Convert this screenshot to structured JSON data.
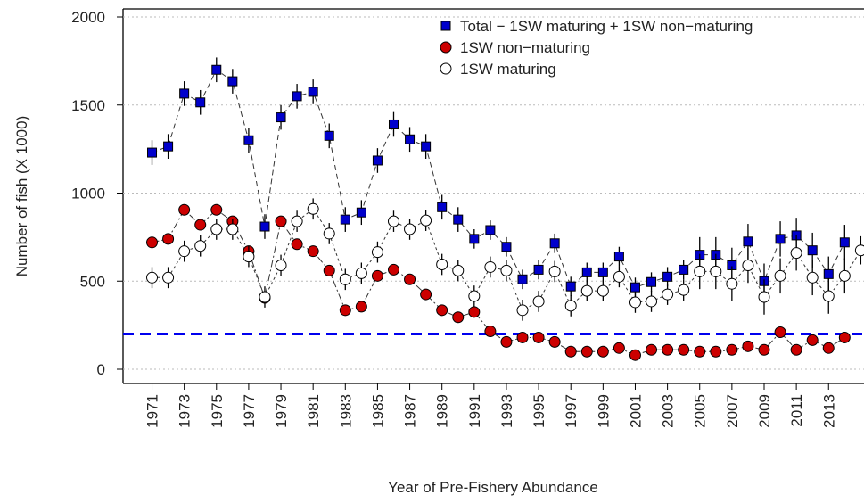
{
  "chart_data": {
    "type": "line",
    "y_label": "Number of fish (X 1000)",
    "x_label": "Year of Pre-Fishery Abundance",
    "x": [
      1971,
      1972,
      1973,
      1974,
      1975,
      1976,
      1977,
      1978,
      1979,
      1980,
      1981,
      1982,
      1983,
      1984,
      1985,
      1986,
      1987,
      1988,
      1989,
      1990,
      1991,
      1992,
      1993,
      1994,
      1995,
      1996,
      1997,
      1998,
      1999,
      2000,
      2001,
      2002,
      2003,
      2004,
      2005,
      2006,
      2007,
      2008,
      2009,
      2010,
      2011,
      2012,
      2013,
      2014,
      2015
    ],
    "xlim": [
      1969.2,
      2015.2
    ],
    "xticks": [
      1971,
      1973,
      1975,
      1977,
      1979,
      1981,
      1983,
      1985,
      1987,
      1989,
      1991,
      1993,
      1995,
      1997,
      1999,
      2001,
      2003,
      2005,
      2007,
      2009,
      2011,
      2013
    ],
    "ylim": [
      0,
      2000
    ],
    "yticks": [
      0,
      500,
      1000,
      1500,
      2000
    ],
    "grid": true,
    "reference_line": {
      "value": 200,
      "color": "#0000ee"
    },
    "legend": "top-right",
    "series": [
      {
        "name": "Total − 1SW maturing + 1SW non−maturing",
        "color": "#0000cc",
        "marker": "square",
        "values": [
          1230,
          1265,
          1565,
          1515,
          1700,
          1635,
          1300,
          810,
          1430,
          1550,
          1575,
          1325,
          850,
          890,
          1185,
          1390,
          1305,
          1265,
          920,
          850,
          740,
          790,
          695,
          510,
          565,
          715,
          470,
          550,
          550,
          640,
          465,
          495,
          525,
          565,
          650,
          650,
          590,
          725,
          500,
          740,
          760,
          675,
          540,
          720,
          null
        ],
        "errors": [
          70,
          70,
          70,
          70,
          70,
          70,
          70,
          70,
          70,
          70,
          70,
          70,
          70,
          70,
          70,
          70,
          70,
          70,
          70,
          70,
          55,
          55,
          55,
          55,
          55,
          55,
          55,
          55,
          55,
          55,
          55,
          55,
          55,
          55,
          100,
          100,
          100,
          100,
          100,
          100,
          100,
          100,
          100,
          100,
          null
        ]
      },
      {
        "name": "1SW non−maturing",
        "color": "#cc0000",
        "marker": "circle",
        "values": [
          720,
          740,
          905,
          820,
          905,
          840,
          670,
          405,
          840,
          710,
          670,
          560,
          335,
          355,
          530,
          565,
          510,
          425,
          335,
          295,
          325,
          215,
          155,
          180,
          180,
          155,
          100,
          100,
          100,
          120,
          80,
          110,
          110,
          110,
          100,
          100,
          110,
          130,
          110,
          210,
          110,
          165,
          120,
          180,
          null
        ]
      },
      {
        "name": "1SW maturing",
        "color": "#ffffff",
        "marker": "circle",
        "values": [
          520,
          520,
          670,
          700,
          795,
          795,
          640,
          410,
          590,
          840,
          910,
          770,
          510,
          545,
          665,
          840,
          795,
          845,
          595,
          560,
          415,
          580,
          560,
          335,
          385,
          555,
          360,
          445,
          445,
          525,
          380,
          385,
          425,
          450,
          555,
          555,
          485,
          590,
          410,
          530,
          660,
          520,
          415,
          530,
          675
        ],
        "errors": [
          60,
          60,
          60,
          60,
          60,
          60,
          60,
          60,
          60,
          60,
          60,
          60,
          60,
          60,
          60,
          60,
          60,
          60,
          60,
          60,
          60,
          60,
          60,
          60,
          60,
          60,
          60,
          60,
          60,
          60,
          60,
          60,
          60,
          60,
          100,
          100,
          100,
          100,
          100,
          100,
          100,
          100,
          100,
          100,
          80
        ]
      }
    ]
  }
}
